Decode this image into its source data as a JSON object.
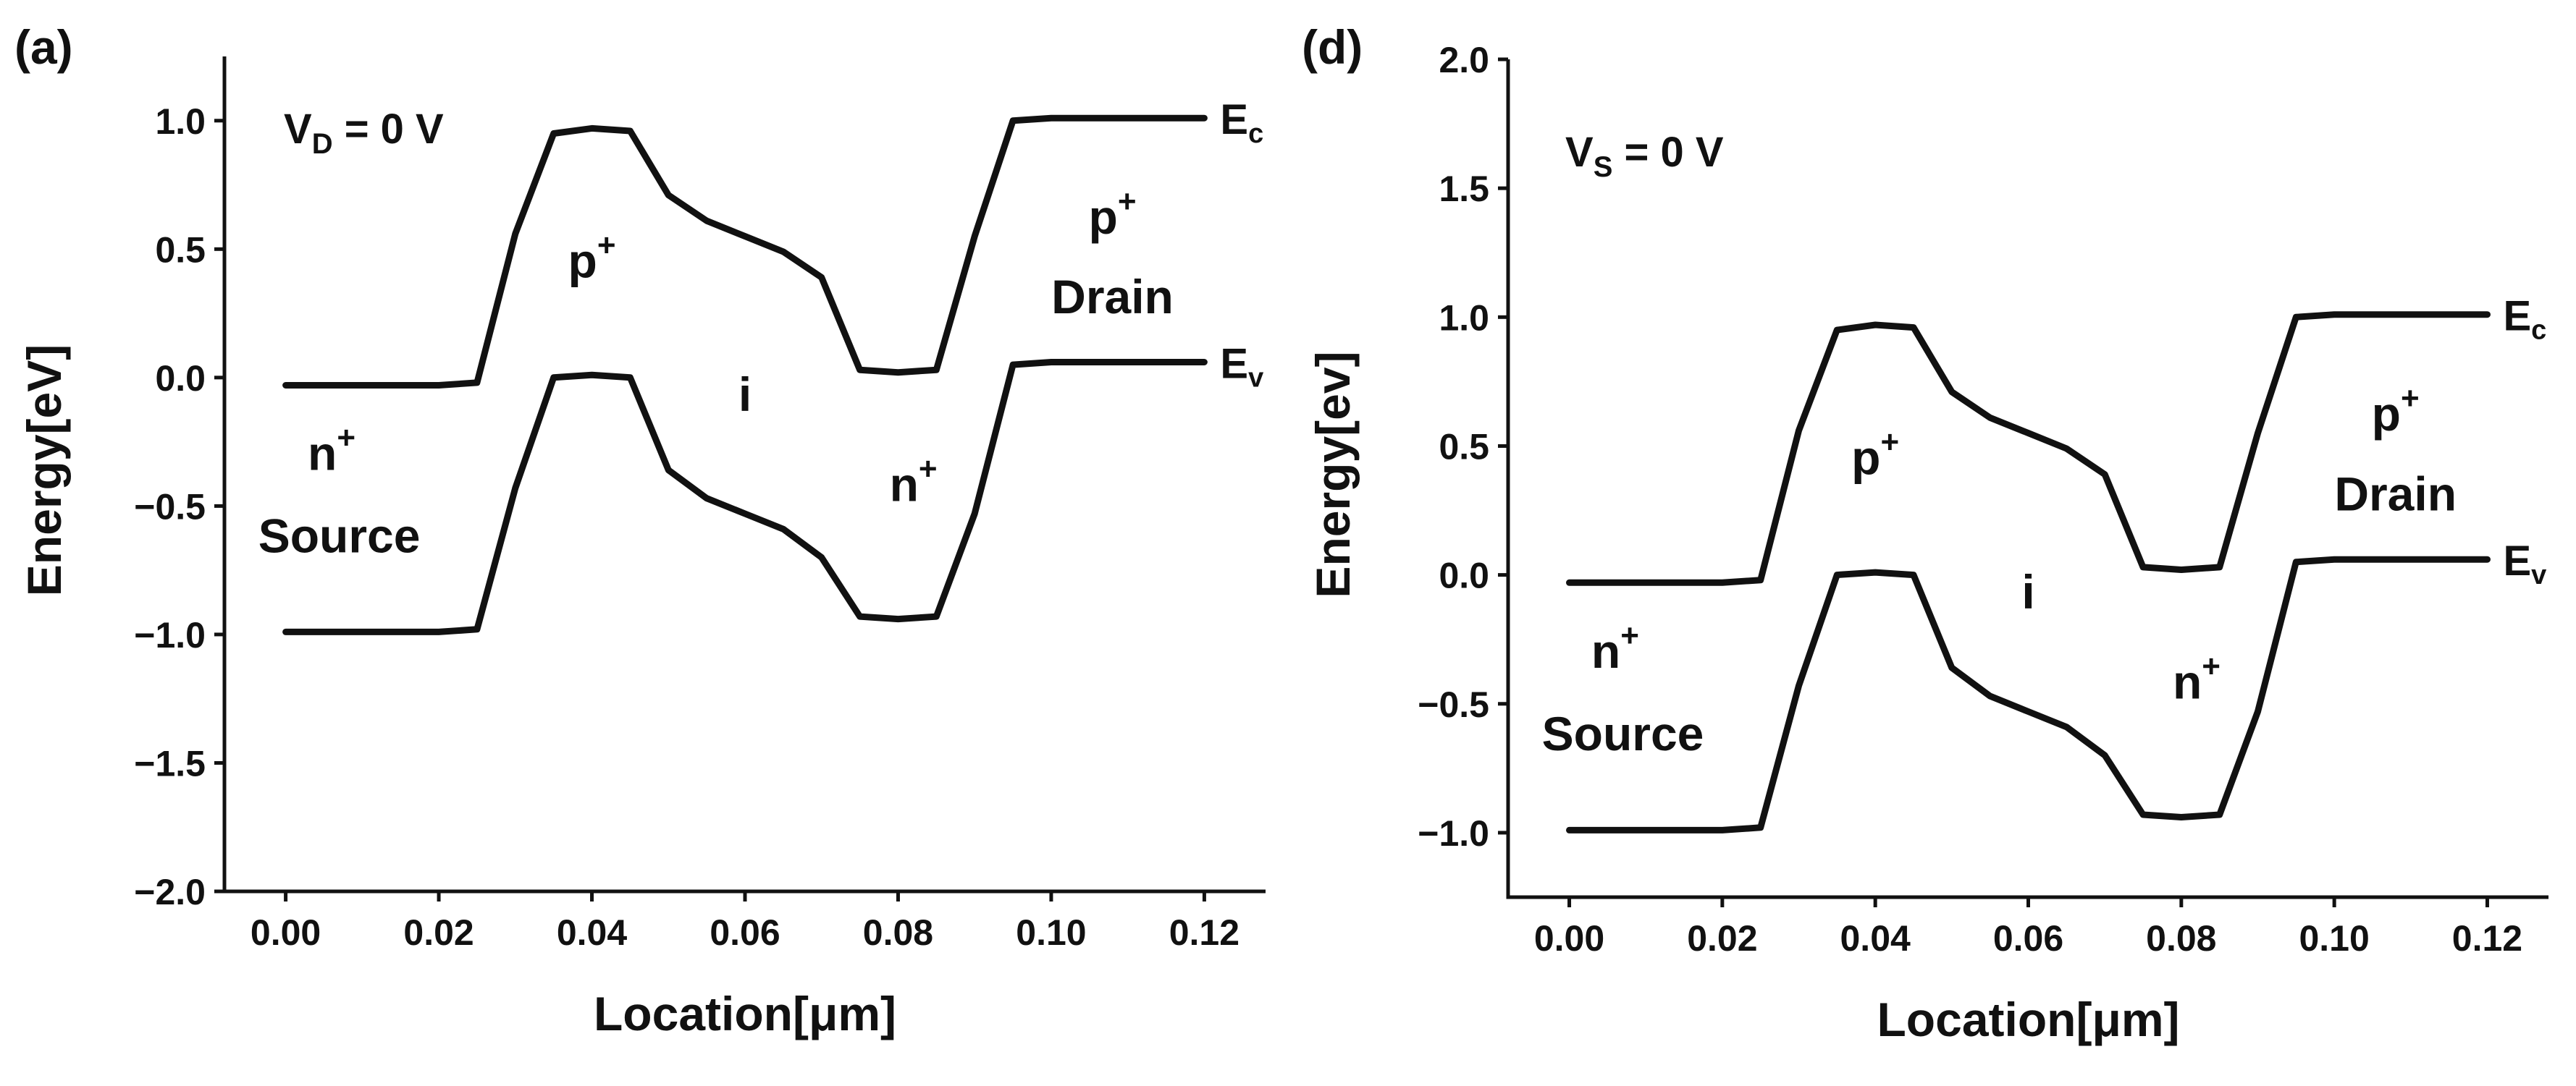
{
  "chart_data": [
    {
      "type": "line",
      "panel_label": "(a)",
      "xlabel": "Location[μm]",
      "ylabel": "Energy[eV]",
      "xlim": [
        -0.008,
        0.128
      ],
      "ylim": [
        -2.0,
        1.25
      ],
      "xticks": [
        0.0,
        0.02,
        0.04,
        0.06,
        0.08,
        0.1,
        0.12
      ],
      "xtick_labels": [
        "0.00",
        "0.02",
        "0.04",
        "0.06",
        "0.08",
        "0.10",
        "0.12"
      ],
      "yticks": [
        1.0,
        0.5,
        0.0,
        -0.5,
        -1.0,
        -1.5,
        -2.0
      ],
      "ytick_labels": [
        "1.0",
        "0.5",
        "0.0",
        "−0.5",
        "−1.0",
        "−1.5",
        "−2.0"
      ],
      "bias": {
        "main": "V",
        "sub": "D",
        "rest": " = 0 V"
      },
      "series": [
        {
          "name": "Ec",
          "label_main": "E",
          "label_sub": "c",
          "x": [
            0.0,
            0.02,
            0.025,
            0.03,
            0.035,
            0.04,
            0.045,
            0.05,
            0.055,
            0.06,
            0.065,
            0.07,
            0.075,
            0.08,
            0.085,
            0.09,
            0.095,
            0.1,
            0.11,
            0.12
          ],
          "y": [
            -0.03,
            -0.03,
            -0.02,
            0.56,
            0.95,
            0.97,
            0.96,
            0.71,
            0.61,
            0.55,
            0.49,
            0.39,
            0.03,
            0.02,
            0.03,
            0.55,
            1.0,
            1.01,
            1.01,
            1.01
          ]
        },
        {
          "name": "Ev",
          "label_main": "E",
          "label_sub": "v",
          "x": [
            0.0,
            0.02,
            0.025,
            0.03,
            0.035,
            0.04,
            0.045,
            0.05,
            0.055,
            0.06,
            0.065,
            0.07,
            0.075,
            0.08,
            0.085,
            0.09,
            0.095,
            0.1,
            0.11,
            0.12
          ],
          "y": [
            -0.99,
            -0.99,
            -0.98,
            -0.43,
            0.0,
            0.01,
            0.0,
            -0.36,
            -0.47,
            -0.53,
            -0.59,
            -0.7,
            -0.93,
            -0.94,
            -0.93,
            -0.53,
            0.05,
            0.06,
            0.06,
            0.06
          ]
        }
      ],
      "regions": [
        {
          "main": "n",
          "sup": "+",
          "x": 0.006,
          "y": -0.36
        },
        {
          "main": "Source",
          "sup": "",
          "x": 0.007,
          "y": -0.68
        },
        {
          "main": "p",
          "sup": "+",
          "x": 0.04,
          "y": 0.39
        },
        {
          "main": "i",
          "sup": "",
          "x": 0.06,
          "y": -0.13
        },
        {
          "main": "n",
          "sup": "+",
          "x": 0.082,
          "y": -0.48
        },
        {
          "main": "p",
          "sup": "+",
          "x": 0.108,
          "y": 0.56
        },
        {
          "main": "Drain",
          "sup": "",
          "x": 0.108,
          "y": 0.25
        }
      ]
    },
    {
      "type": "line",
      "panel_label": "(d)",
      "xlabel": "Location[μm]",
      "ylabel": "Energy[ev]",
      "xlim": [
        -0.008,
        0.128
      ],
      "ylim": [
        -1.25,
        2.0
      ],
      "xticks": [
        0.0,
        0.02,
        0.04,
        0.06,
        0.08,
        0.1,
        0.12
      ],
      "xtick_labels": [
        "0.00",
        "0.02",
        "0.04",
        "0.06",
        "0.08",
        "0.10",
        "0.12"
      ],
      "yticks": [
        2.0,
        1.5,
        1.0,
        0.5,
        0.0,
        -0.5,
        -1.0
      ],
      "ytick_labels": [
        "2.0",
        "1.5",
        "1.0",
        "0.5",
        "0.0",
        "−0.5",
        "−1.0"
      ],
      "bias": {
        "main": "V",
        "sub": "S",
        "rest": " = 0 V"
      },
      "series": [
        {
          "name": "Ec",
          "label_main": "E",
          "label_sub": "c",
          "x": [
            0.0,
            0.02,
            0.025,
            0.03,
            0.035,
            0.04,
            0.045,
            0.05,
            0.055,
            0.06,
            0.065,
            0.07,
            0.075,
            0.08,
            0.085,
            0.09,
            0.095,
            0.1,
            0.11,
            0.12
          ],
          "y": [
            -0.03,
            -0.03,
            -0.02,
            0.56,
            0.95,
            0.97,
            0.96,
            0.71,
            0.61,
            0.55,
            0.49,
            0.39,
            0.03,
            0.02,
            0.03,
            0.55,
            1.0,
            1.01,
            1.01,
            1.01
          ]
        },
        {
          "name": "Ev",
          "label_main": "E",
          "label_sub": "v",
          "x": [
            0.0,
            0.02,
            0.025,
            0.03,
            0.035,
            0.04,
            0.045,
            0.05,
            0.055,
            0.06,
            0.065,
            0.07,
            0.075,
            0.08,
            0.085,
            0.09,
            0.095,
            0.1,
            0.11,
            0.12
          ],
          "y": [
            -0.99,
            -0.99,
            -0.98,
            -0.43,
            0.0,
            0.01,
            0.0,
            -0.36,
            -0.47,
            -0.53,
            -0.59,
            -0.7,
            -0.93,
            -0.94,
            -0.93,
            -0.53,
            0.05,
            0.06,
            0.06,
            0.06
          ]
        }
      ],
      "regions": [
        {
          "main": "n",
          "sup": "+",
          "x": 0.006,
          "y": -0.36
        },
        {
          "main": "Source",
          "sup": "",
          "x": 0.007,
          "y": -0.68
        },
        {
          "main": "p",
          "sup": "+",
          "x": 0.04,
          "y": 0.39
        },
        {
          "main": "i",
          "sup": "",
          "x": 0.06,
          "y": -0.13
        },
        {
          "main": "n",
          "sup": "+",
          "x": 0.082,
          "y": -0.48
        },
        {
          "main": "p",
          "sup": "+",
          "x": 0.108,
          "y": 0.56
        },
        {
          "main": "Drain",
          "sup": "",
          "x": 0.108,
          "y": 0.25
        }
      ]
    }
  ]
}
